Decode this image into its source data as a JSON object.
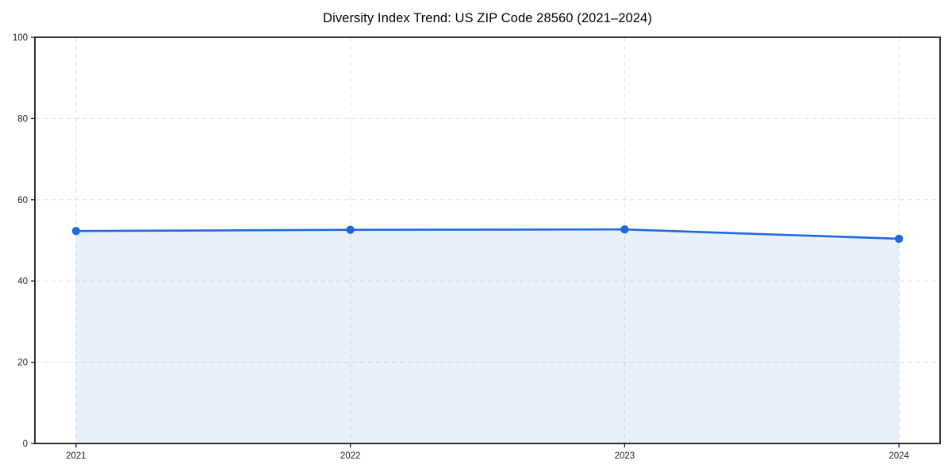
{
  "chart_data": {
    "type": "area",
    "title": "Diversity Index Trend: US ZIP Code 28560 (2021–2024)",
    "x": [
      2021,
      2022,
      2023,
      2024
    ],
    "xticklabels": [
      "2021",
      "2022",
      "2023",
      "2024"
    ],
    "series": [
      {
        "name": "Diversity Index",
        "values": [
          52.3,
          52.6,
          52.7,
          50.4
        ]
      }
    ],
    "xlabel": "",
    "ylabel": "",
    "xlim": [
      2020.85,
      2024.15
    ],
    "ylim": [
      0,
      100
    ],
    "yticks": [
      0,
      20,
      40,
      60,
      80,
      100
    ],
    "xticks": [
      2021,
      2022,
      2023,
      2024
    ],
    "grid": true,
    "grid_style": "dashed",
    "legend": false,
    "colors": {
      "line": "#2068dd",
      "fill": "#2068dd",
      "fill_opacity": 0.1,
      "grid": "#e0e0e0",
      "spine": "#1a1a1a",
      "tick_label": "#1f1f1f",
      "title": "#000000",
      "background": "#ffffff"
    }
  }
}
